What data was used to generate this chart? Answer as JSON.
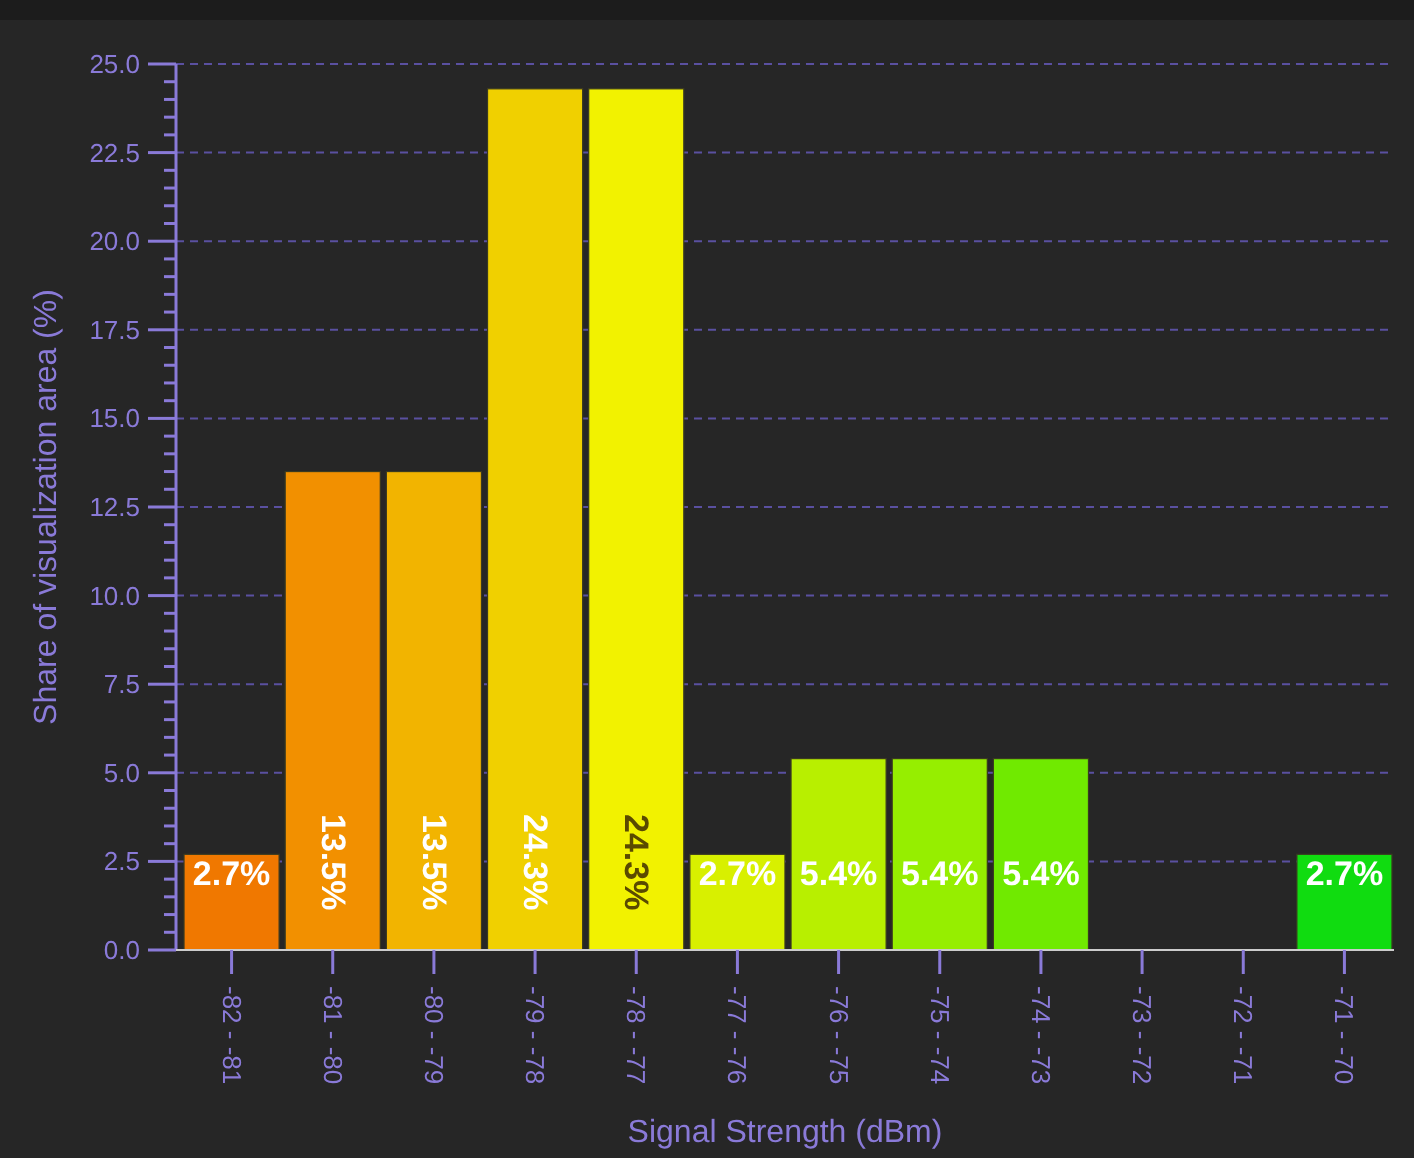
{
  "chart_data": {
    "type": "bar",
    "xlabel": "Signal Strength (dBm)",
    "ylabel": "Share of visualization area (%)",
    "categories": [
      "-82 - -81",
      "-81 - -80",
      "-80 - -79",
      "-79 - -78",
      "-78 - -77",
      "-77 - -76",
      "-76 - -75",
      "-75 - -74",
      "-74 - -73",
      "-73 - -72",
      "-72 - -71",
      "-71 - -70"
    ],
    "values": [
      2.7,
      13.5,
      13.5,
      24.3,
      24.3,
      2.7,
      5.4,
      5.4,
      5.4,
      0,
      0,
      2.7
    ],
    "value_labels": [
      "2.7%",
      "13.5%",
      "13.5%",
      "24.3%",
      "24.3%",
      "2.7%",
      "5.4%",
      "5.4%",
      "5.4%",
      null,
      null,
      "2.7%"
    ],
    "colors": [
      "#f07800",
      "#f29000",
      "#f2b400",
      "#f0d000",
      "#f2f200",
      "#d8f000",
      "#b8ef00",
      "#96ee00",
      "#70ea00",
      "#40e400",
      "#20e000",
      "#10dc10"
    ],
    "ylim": [
      0,
      25
    ],
    "yticks": [
      {
        "value": 0,
        "label": "0.0"
      },
      {
        "value": 2.5,
        "label": "2.5"
      },
      {
        "value": 5,
        "label": "5.0"
      },
      {
        "value": 7.5,
        "label": "7.5"
      },
      {
        "value": 10,
        "label": "10.0"
      },
      {
        "value": 12.5,
        "label": "12.5"
      },
      {
        "value": 15,
        "label": "15.0"
      },
      {
        "value": 17.5,
        "label": "17.5"
      },
      {
        "value": 20,
        "label": "20.0"
      },
      {
        "value": 22.5,
        "label": "22.5"
      },
      {
        "value": 25,
        "label": "25.0"
      }
    ],
    "grid": "y"
  }
}
